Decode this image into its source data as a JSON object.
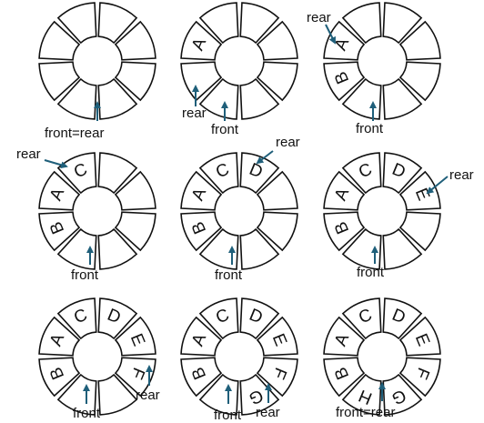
{
  "colors": {
    "outline": "#111111",
    "arrow": "#1f5f7a",
    "background": "#ffffff"
  },
  "queues": [
    {
      "cells": [
        "",
        "",
        "",
        "",
        "",
        "",
        "",
        ""
      ],
      "pointers": [
        {
          "text": "front=rear"
        }
      ]
    },
    {
      "cells": [
        "",
        "",
        "",
        "",
        "",
        "",
        "",
        "A"
      ],
      "pointers": [
        {
          "text": "rear"
        },
        {
          "text": "front"
        }
      ]
    },
    {
      "cells": [
        "",
        "",
        "",
        "",
        "",
        "",
        "B",
        "A"
      ],
      "pointers": [
        {
          "text": "rear"
        },
        {
          "text": "front"
        }
      ]
    },
    {
      "cells": [
        "C",
        "",
        "",
        "",
        "",
        "",
        "B",
        "A"
      ],
      "pointers": [
        {
          "text": "rear"
        },
        {
          "text": "front"
        }
      ]
    },
    {
      "cells": [
        "C",
        "D",
        "",
        "",
        "",
        "",
        "B",
        "A"
      ],
      "pointers": [
        {
          "text": "rear"
        },
        {
          "text": "front"
        }
      ]
    },
    {
      "cells": [
        "C",
        "D",
        "E",
        "",
        "",
        "",
        "B",
        "A"
      ],
      "pointers": [
        {
          "text": "rear"
        },
        {
          "text": "front"
        }
      ]
    },
    {
      "cells": [
        "C",
        "D",
        "E",
        "F",
        "",
        "",
        "B",
        "A"
      ],
      "pointers": [
        {
          "text": "rear"
        },
        {
          "text": "front"
        }
      ]
    },
    {
      "cells": [
        "C",
        "D",
        "E",
        "F",
        "G",
        "",
        "B",
        "A"
      ],
      "pointers": [
        {
          "text": "rear"
        },
        {
          "text": "front"
        }
      ]
    },
    {
      "cells": [
        "C",
        "D",
        "E",
        "F",
        "G",
        "H",
        "B",
        "A"
      ],
      "pointers": [
        {
          "text": "front=rear"
        }
      ]
    }
  ]
}
